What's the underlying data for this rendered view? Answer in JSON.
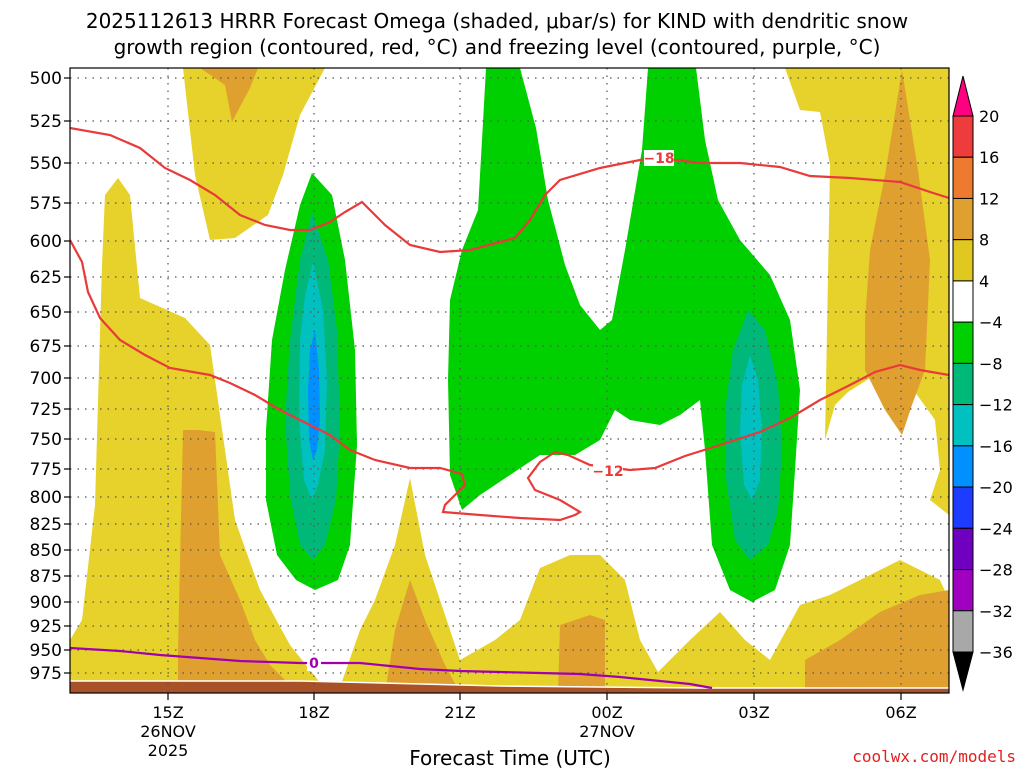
{
  "title_line1": "2025112613 HRRR Forecast Omega (shaded, μbar/s) for KIND with dendritic snow",
  "title_line2": "growth region (contoured, red, °C) and freezing level (contoured, purple, °C)",
  "credit": "coolwx.com/models",
  "chart_data": {
    "type": "heatmap",
    "xlabel": "Forecast Time (UTC)",
    "ylabel": "",
    "y_ticks": [
      "500",
      "525",
      "550",
      "575",
      "600",
      "625",
      "650",
      "675",
      "700",
      "725",
      "750",
      "775",
      "800",
      "825",
      "850",
      "875",
      "900",
      "925",
      "950",
      "975"
    ],
    "x_ticks": [
      {
        "label": "15Z",
        "sub1": "26NOV",
        "sub2": "2025"
      },
      {
        "label": "18Z",
        "sub1": "",
        "sub2": ""
      },
      {
        "label": "21Z",
        "sub1": "",
        "sub2": ""
      },
      {
        "label": "00Z",
        "sub1": "27NOV",
        "sub2": ""
      },
      {
        "label": "03Z",
        "sub1": "",
        "sub2": ""
      },
      {
        "label": "06Z",
        "sub1": "",
        "sub2": ""
      }
    ],
    "colorbar": {
      "labels": [
        "20",
        "16",
        "12",
        "8",
        "4",
        "−4",
        "−8",
        "−12",
        "−16",
        "−20",
        "−24",
        "−28",
        "−32",
        "−36"
      ],
      "colors": [
        "#ff0080",
        "#ee3c3c",
        "#ee7a30",
        "#e0a030",
        "#e0c820",
        "#ffffff",
        "#00d000",
        "#00b878",
        "#00c0c0",
        "#0090ff",
        "#1e3cff",
        "#7000c0",
        "#a000c0",
        "#a8a8a8",
        "#000000"
      ]
    },
    "contours": [
      {
        "label": "−18",
        "color": "#e83a3a"
      },
      {
        "label": "−12",
        "color": "#e83a3a"
      },
      {
        "label": "0",
        "color": "#a000b0"
      }
    ]
  }
}
